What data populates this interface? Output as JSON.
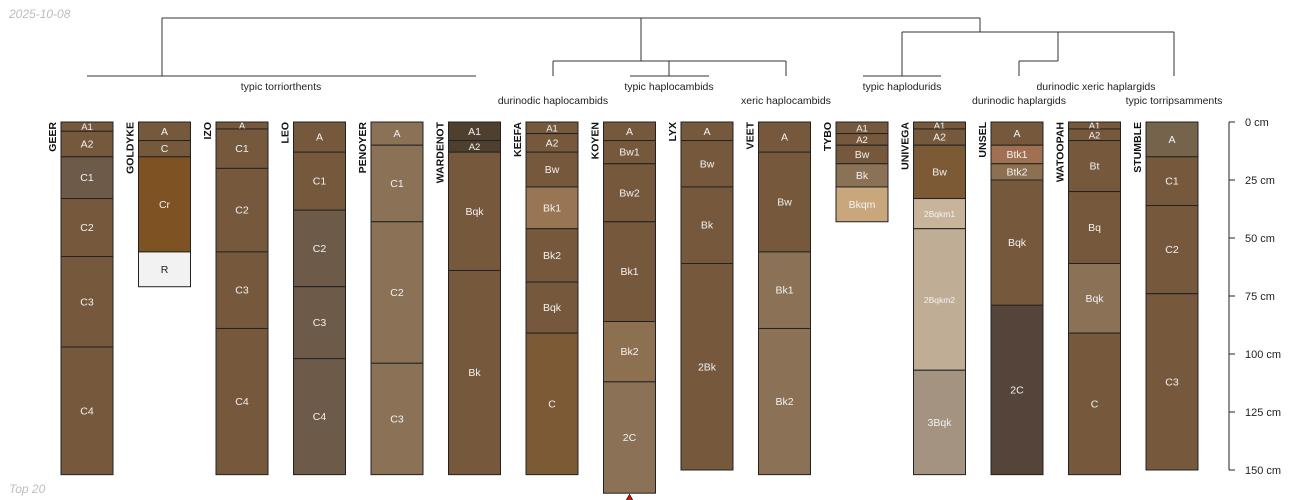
{
  "header": {
    "date": "2025-10-08"
  },
  "footer": {
    "caption": "Top 20"
  },
  "colors": {
    "tree_line": "#333333",
    "horizon_border": "#222222",
    "text_light": "#f2f2f2",
    "text_dark": "#222222",
    "truncation_marker": "#cc1111"
  },
  "depth_axis": {
    "unit": "cm",
    "min": 0,
    "max": 150,
    "ticks": [
      0,
      25,
      50,
      75,
      100,
      125,
      150
    ],
    "tick_labels": [
      "0 cm",
      "25 cm",
      "50 cm",
      "75 cm",
      "100 cm",
      "125 cm",
      "150 cm"
    ]
  },
  "groups": [
    {
      "name": "typic torriorthents",
      "from": 0,
      "to": 5
    },
    {
      "name": "durinodic haplocambids",
      "from": 6,
      "to": 6
    },
    {
      "name": "typic haplocambids",
      "from": 7,
      "to": 8
    },
    {
      "name": "xeric haplocambids",
      "from": 9,
      "to": 9
    },
    {
      "name": "typic haplodurids",
      "from": 10,
      "to": 11
    },
    {
      "name": "durinodic haplargids",
      "from": 12,
      "to": 12
    },
    {
      "name": "durinodic xeric haplargids",
      "from": 13,
      "to": 13
    },
    {
      "name": "typic torripsamments",
      "from": 14,
      "to": 14
    }
  ],
  "profiles": [
    {
      "name": "GEER",
      "horizons": [
        {
          "name": "A1",
          "top": 0,
          "bottom": 4,
          "color": "#76593d"
        },
        {
          "name": "A2",
          "top": 4,
          "bottom": 15,
          "color": "#76593d"
        },
        {
          "name": "C1",
          "top": 15,
          "bottom": 33,
          "color": "#6e5a48"
        },
        {
          "name": "C2",
          "top": 33,
          "bottom": 58,
          "color": "#76593d"
        },
        {
          "name": "C3",
          "top": 58,
          "bottom": 97,
          "color": "#76593d"
        },
        {
          "name": "C4",
          "top": 97,
          "bottom": 152,
          "color": "#76593d"
        }
      ]
    },
    {
      "name": "GOLDYKE",
      "horizons": [
        {
          "name": "A",
          "top": 0,
          "bottom": 8,
          "color": "#76593d"
        },
        {
          "name": "C",
          "top": 8,
          "bottom": 15,
          "color": "#76593d"
        },
        {
          "name": "Cr",
          "top": 15,
          "bottom": 56,
          "color": "#7e5222"
        },
        {
          "name": "R",
          "top": 56,
          "bottom": 71,
          "color": "#f2f2f2"
        }
      ]
    },
    {
      "name": "IZO",
      "horizons": [
        {
          "name": "A",
          "top": 0,
          "bottom": 3,
          "color": "#76593d"
        },
        {
          "name": "C1",
          "top": 3,
          "bottom": 20,
          "color": "#76593d"
        },
        {
          "name": "C2",
          "top": 20,
          "bottom": 56,
          "color": "#76593d"
        },
        {
          "name": "C3",
          "top": 56,
          "bottom": 89,
          "color": "#76593d"
        },
        {
          "name": "C4",
          "top": 89,
          "bottom": 152,
          "color": "#76593d"
        }
      ]
    },
    {
      "name": "LEO",
      "horizons": [
        {
          "name": "A",
          "top": 0,
          "bottom": 13,
          "color": "#76593d"
        },
        {
          "name": "C1",
          "top": 13,
          "bottom": 38,
          "color": "#76593d"
        },
        {
          "name": "C2",
          "top": 38,
          "bottom": 71,
          "color": "#6e5a48"
        },
        {
          "name": "C3",
          "top": 71,
          "bottom": 102,
          "color": "#6e5a48"
        },
        {
          "name": "C4",
          "top": 102,
          "bottom": 152,
          "color": "#6e5a48"
        }
      ]
    },
    {
      "name": "PENOYER",
      "horizons": [
        {
          "name": "A",
          "top": 0,
          "bottom": 10,
          "color": "#8b7257"
        },
        {
          "name": "C1",
          "top": 10,
          "bottom": 43,
          "color": "#8b7257"
        },
        {
          "name": "C2",
          "top": 43,
          "bottom": 104,
          "color": "#8b7257"
        },
        {
          "name": "C3",
          "top": 104,
          "bottom": 152,
          "color": "#8b7257"
        }
      ]
    },
    {
      "name": "WARDENOT",
      "horizons": [
        {
          "name": "A1",
          "top": 0,
          "bottom": 8,
          "color": "#4f3f2e"
        },
        {
          "name": "A2",
          "top": 8,
          "bottom": 13,
          "color": "#4f3f2e"
        },
        {
          "name": "Bqk",
          "top": 13,
          "bottom": 64,
          "color": "#76593d"
        },
        {
          "name": "Bk",
          "top": 64,
          "bottom": 152,
          "color": "#76593d"
        }
      ]
    },
    {
      "name": "KEEFA",
      "horizons": [
        {
          "name": "A1",
          "top": 0,
          "bottom": 5,
          "color": "#76593d"
        },
        {
          "name": "A2",
          "top": 5,
          "bottom": 13,
          "color": "#76593d"
        },
        {
          "name": "Bw",
          "top": 13,
          "bottom": 28,
          "color": "#76593d"
        },
        {
          "name": "Bk1",
          "top": 28,
          "bottom": 46,
          "color": "#987553"
        },
        {
          "name": "Bk2",
          "top": 46,
          "bottom": 69,
          "color": "#76593d"
        },
        {
          "name": "Bqk",
          "top": 69,
          "bottom": 91,
          "color": "#76593d"
        },
        {
          "name": "C",
          "top": 91,
          "bottom": 152,
          "color": "#7b5a35"
        }
      ]
    },
    {
      "name": "KOYEN",
      "truncated": true,
      "horizons": [
        {
          "name": "A",
          "top": 0,
          "bottom": 8,
          "color": "#76593d"
        },
        {
          "name": "Bw1",
          "top": 8,
          "bottom": 18,
          "color": "#76593d"
        },
        {
          "name": "Bw2",
          "top": 18,
          "bottom": 43,
          "color": "#76593d"
        },
        {
          "name": "Bk1",
          "top": 43,
          "bottom": 86,
          "color": "#76593d"
        },
        {
          "name": "Bk2",
          "top": 86,
          "bottom": 112,
          "color": "#8c7050"
        },
        {
          "name": "2C",
          "top": 112,
          "bottom": 160,
          "color": "#8b7257"
        }
      ]
    },
    {
      "name": "LYX",
      "horizons": [
        {
          "name": "A",
          "top": 0,
          "bottom": 8,
          "color": "#76593d"
        },
        {
          "name": "Bw",
          "top": 8,
          "bottom": 28,
          "color": "#76593d"
        },
        {
          "name": "Bk",
          "top": 28,
          "bottom": 61,
          "color": "#76593d"
        },
        {
          "name": "2Bk",
          "top": 61,
          "bottom": 150,
          "color": "#76593d"
        }
      ]
    },
    {
      "name": "VEET",
      "horizons": [
        {
          "name": "A",
          "top": 0,
          "bottom": 13,
          "color": "#76593d"
        },
        {
          "name": "Bw",
          "top": 13,
          "bottom": 56,
          "color": "#76593d"
        },
        {
          "name": "Bk1",
          "top": 56,
          "bottom": 89,
          "color": "#8b7257"
        },
        {
          "name": "Bk2",
          "top": 89,
          "bottom": 152,
          "color": "#8b7257"
        }
      ]
    },
    {
      "name": "TYBO",
      "horizons": [
        {
          "name": "A1",
          "top": 0,
          "bottom": 5,
          "color": "#76593d"
        },
        {
          "name": "A2",
          "top": 5,
          "bottom": 10,
          "color": "#76593d"
        },
        {
          "name": "Bw",
          "top": 10,
          "bottom": 18,
          "color": "#76593d"
        },
        {
          "name": "Bk",
          "top": 18,
          "bottom": 28,
          "color": "#8b7257"
        },
        {
          "name": "Bkqm",
          "top": 28,
          "bottom": 43,
          "color": "#c8a77c"
        }
      ]
    },
    {
      "name": "UNIVEGA",
      "horizons": [
        {
          "name": "A1",
          "top": 0,
          "bottom": 3,
          "color": "#76593d"
        },
        {
          "name": "A2",
          "top": 3,
          "bottom": 10,
          "color": "#76593d"
        },
        {
          "name": "Bw",
          "top": 10,
          "bottom": 33,
          "color": "#7b5a35"
        },
        {
          "name": "2Bqkm1",
          "top": 33,
          "bottom": 46,
          "color": "#c8b49a"
        },
        {
          "name": "2Bqkm2",
          "top": 46,
          "bottom": 107,
          "color": "#c0ad96"
        },
        {
          "name": "3Bqk",
          "top": 107,
          "bottom": 152,
          "color": "#a49380"
        }
      ]
    },
    {
      "name": "UNSEL",
      "horizons": [
        {
          "name": "A",
          "top": 0,
          "bottom": 10,
          "color": "#76593d"
        },
        {
          "name": "Btk1",
          "top": 10,
          "bottom": 18,
          "color": "#a07050"
        },
        {
          "name": "Btk2",
          "top": 18,
          "bottom": 25,
          "color": "#8c7050"
        },
        {
          "name": "Bqk",
          "top": 25,
          "bottom": 79,
          "color": "#76593d"
        },
        {
          "name": "2C",
          "top": 79,
          "bottom": 152,
          "color": "#54443a"
        }
      ]
    },
    {
      "name": "WATOOPAH",
      "horizons": [
        {
          "name": "A1",
          "top": 0,
          "bottom": 3,
          "color": "#76593d"
        },
        {
          "name": "A2",
          "top": 3,
          "bottom": 8,
          "color": "#76593d"
        },
        {
          "name": "Bt",
          "top": 8,
          "bottom": 30,
          "color": "#76593d"
        },
        {
          "name": "Bq",
          "top": 30,
          "bottom": 61,
          "color": "#76593d"
        },
        {
          "name": "Bqk",
          "top": 61,
          "bottom": 91,
          "color": "#8b7257"
        },
        {
          "name": "C",
          "top": 91,
          "bottom": 152,
          "color": "#76593d"
        }
      ]
    },
    {
      "name": "STUMBLE",
      "horizons": [
        {
          "name": "A",
          "top": 0,
          "bottom": 15,
          "color": "#76634c"
        },
        {
          "name": "C1",
          "top": 15,
          "bottom": 36,
          "color": "#76593d"
        },
        {
          "name": "C2",
          "top": 36,
          "bottom": 74,
          "color": "#76593d"
        },
        {
          "name": "C3",
          "top": 74,
          "bottom": 150,
          "color": "#76593d"
        }
      ]
    }
  ]
}
